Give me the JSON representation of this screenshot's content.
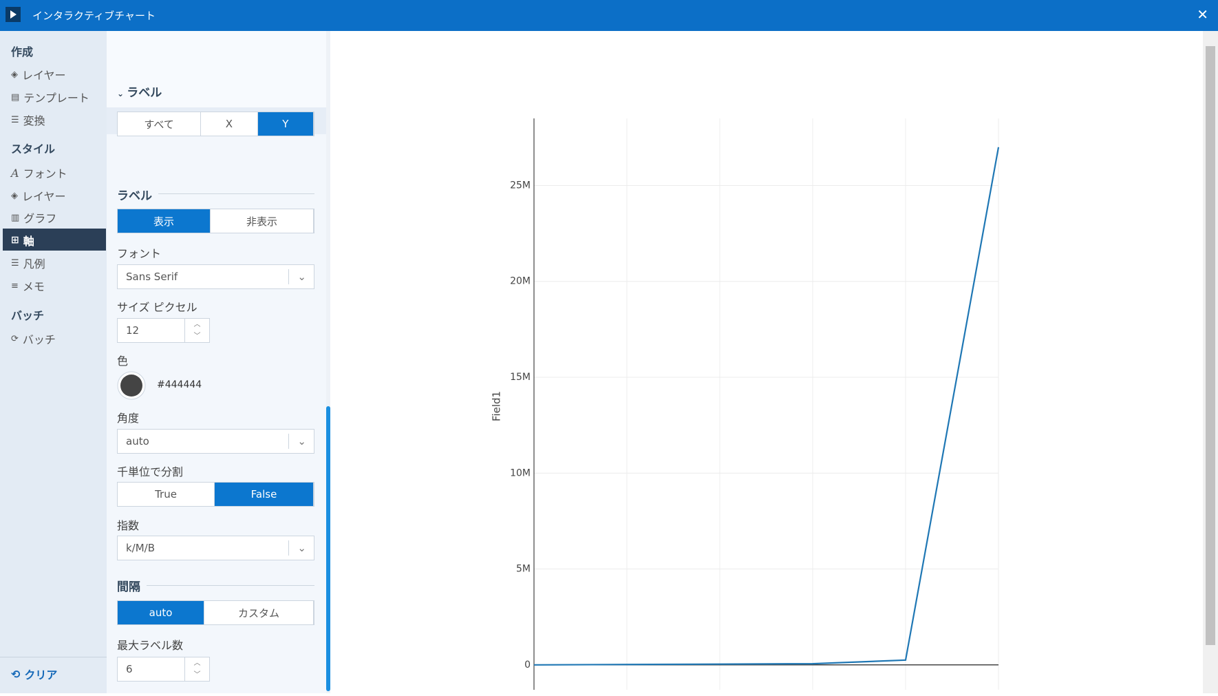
{
  "header": {
    "title": "インタラクティブチャート"
  },
  "sidebar": {
    "sections": [
      {
        "title": "作成",
        "items": [
          "レイヤー",
          "テンプレート",
          "変換"
        ]
      },
      {
        "title": "スタイル",
        "items": [
          "フォント",
          "レイヤー",
          "グラフ",
          "軸",
          "凡例",
          "メモ"
        ]
      },
      {
        "title": "バッチ",
        "items": [
          "バッチ"
        ]
      }
    ],
    "footer": "クリア"
  },
  "panel": {
    "section_title": "ラベル",
    "axis_tabs": [
      "すべて",
      "X",
      "Y"
    ],
    "label_heading": "ラベル",
    "display_toggle": [
      "表示",
      "非表示"
    ],
    "font_label": "フォント",
    "font_value": "Sans Serif",
    "size_label": "サイズ ピクセル",
    "size_value": "12",
    "color_label": "色",
    "color_value": "#444444",
    "angle_label": "角度",
    "angle_value": "auto",
    "thousands_label": "千単位で分割",
    "thousands_toggle": [
      "True",
      "False"
    ],
    "exponent_label": "指数",
    "exponent_value": "k/M/B",
    "interval_heading": "間隔",
    "interval_toggle": [
      "auto",
      "カスタム"
    ],
    "max_labels_label": "最大ラベル数",
    "max_labels_value": "6"
  },
  "chart_data": {
    "type": "line",
    "y_label": "Field1",
    "categories": [
      null,
      null,
      null,
      null,
      null,
      null
    ],
    "series": [
      {
        "name": "Field1",
        "color": "#1f77b4",
        "values": [
          0,
          20000,
          40000,
          60000,
          250000,
          27000000
        ]
      }
    ],
    "ylim": [
      -1300000,
      28500000
    ],
    "yticks": [
      0,
      {
        "value": 5000000,
        "label": "5M"
      },
      {
        "value": 10000000,
        "label": "10M"
      },
      {
        "value": 15000000,
        "label": "15M"
      },
      {
        "value": 20000000,
        "label": "20M"
      },
      {
        "value": 25000000,
        "label": "25M"
      }
    ],
    "grid": true
  }
}
